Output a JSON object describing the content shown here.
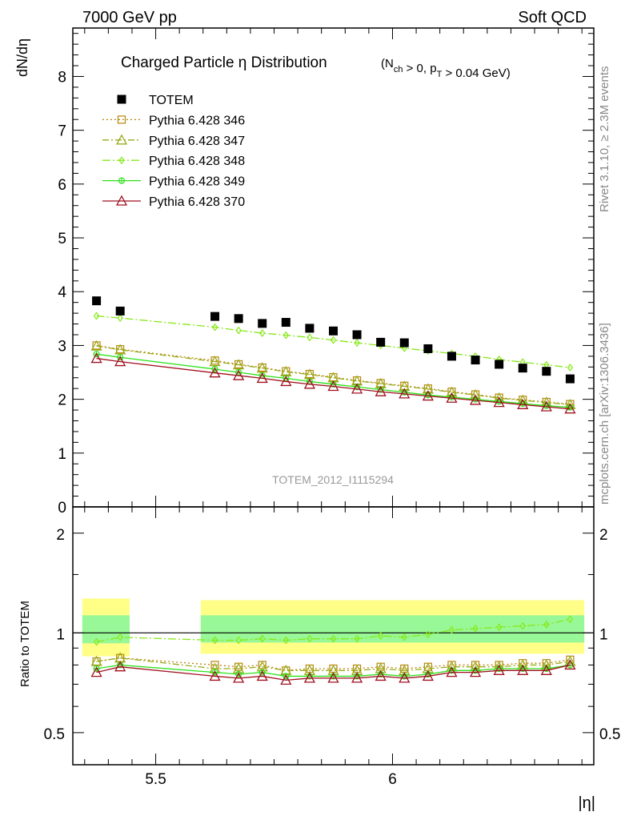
{
  "header": {
    "left": "7000 GeV pp",
    "right": "Soft QCD"
  },
  "side_labels": {
    "rivet": "Rivet 3.1.10, ≥ 2.3M events",
    "mcplots": "mcplots.cern.ch [arXiv:1306.3436]"
  },
  "watermark": "TOTEM_2012_I1115294",
  "colors": {
    "totem": "#000000",
    "p346": "#b8860b",
    "p347": "#9aab1a",
    "p348": "#88e81a",
    "p349": "#2ee01a",
    "p370": "#a01020",
    "band_outer": "#ffff88",
    "band_inner": "#98f898"
  },
  "chart_data": [
    {
      "type": "line",
      "title": "Charged Particle η Distribution",
      "title_cond": "(N_ch > 0, p_T > 0.04 GeV)",
      "ylabel": "dN/dη",
      "xlim": [
        5.325,
        6.425
      ],
      "ylim": [
        0,
        8.9
      ],
      "yticks": [
        0,
        1,
        2,
        3,
        4,
        5,
        6,
        7,
        8
      ],
      "x": [
        5.375,
        5.425,
        5.625,
        5.675,
        5.725,
        5.775,
        5.825,
        5.875,
        5.925,
        5.975,
        6.025,
        6.075,
        6.125,
        6.175,
        6.225,
        6.275,
        6.325,
        6.375
      ],
      "data": {
        "name": "TOTEM",
        "x": [
          5.375,
          5.425,
          5.625,
          5.675,
          5.725,
          5.775,
          5.825,
          5.875,
          5.925,
          5.975,
          6.025,
          6.075,
          6.125,
          6.175,
          6.225,
          6.275,
          6.325,
          6.375
        ],
        "values": [
          3.83,
          3.64,
          3.54,
          3.5,
          3.41,
          3.43,
          3.32,
          3.27,
          3.2,
          3.06,
          3.05,
          2.94,
          2.8,
          2.73,
          2.65,
          2.58,
          2.52,
          2.38
        ]
      },
      "series": [
        {
          "name": "Pythia 6.428 346",
          "marker": "square-open",
          "dash": "2,3",
          "values": [
            3.0,
            2.93,
            2.72,
            2.65,
            2.59,
            2.52,
            2.47,
            2.41,
            2.35,
            2.3,
            2.25,
            2.2,
            2.14,
            2.09,
            2.03,
            1.99,
            1.95,
            1.91
          ]
        },
        {
          "name": "Pythia 6.428 347",
          "marker": "triangle-open",
          "dash": "8,3,2,3",
          "values": [
            2.99,
            2.92,
            2.7,
            2.64,
            2.58,
            2.51,
            2.46,
            2.4,
            2.34,
            2.29,
            2.24,
            2.19,
            2.13,
            2.08,
            2.02,
            1.98,
            1.94,
            1.9
          ]
        },
        {
          "name": "Pythia 6.428 348",
          "marker": "diamond-open",
          "dash": "10,3,2,3",
          "values": [
            3.55,
            3.51,
            3.34,
            3.28,
            3.23,
            3.19,
            3.15,
            3.1,
            3.05,
            3.0,
            2.95,
            2.9,
            2.85,
            2.8,
            2.74,
            2.69,
            2.64,
            2.59
          ]
        },
        {
          "name": "Pythia 6.428 349",
          "marker": "circle-cross",
          "dash": "",
          "values": [
            2.84,
            2.78,
            2.56,
            2.5,
            2.44,
            2.39,
            2.33,
            2.28,
            2.23,
            2.18,
            2.13,
            2.08,
            2.04,
            2.0,
            1.96,
            1.92,
            1.88,
            1.85
          ]
        },
        {
          "name": "Pythia 6.428 370",
          "marker": "triangle-open",
          "dash": "",
          "values": [
            2.76,
            2.7,
            2.49,
            2.44,
            2.39,
            2.33,
            2.28,
            2.24,
            2.19,
            2.14,
            2.1,
            2.06,
            2.02,
            1.98,
            1.94,
            1.9,
            1.86,
            1.82
          ]
        }
      ]
    },
    {
      "type": "line",
      "ylabel": "Ratio to TOTEM",
      "xlabel": "|η|",
      "xlim": [
        5.325,
        6.425
      ],
      "ylim": [
        0.4,
        2.4
      ],
      "log_y": true,
      "yticks": [
        0.5,
        1,
        2
      ],
      "ytick_labels": [
        "0.5",
        "1",
        "2"
      ],
      "xticks": [
        5.5,
        6
      ],
      "xtick_labels": [
        "5.5",
        "6"
      ],
      "band_segments": [
        {
          "x": [
            5.345,
            5.445
          ],
          "outer": [
            0.85,
            1.27
          ],
          "inner": [
            0.93,
            1.13
          ]
        },
        {
          "x": [
            5.595,
            6.405
          ],
          "outer": [
            0.865,
            1.255
          ],
          "inner": [
            0.935,
            1.13
          ]
        }
      ],
      "series": [
        {
          "name": "Pythia 6.428 346",
          "values": [
            0.82,
            0.84,
            0.8,
            0.79,
            0.8,
            0.77,
            0.78,
            0.78,
            0.78,
            0.79,
            0.78,
            0.79,
            0.8,
            0.8,
            0.8,
            0.81,
            0.81,
            0.83
          ]
        },
        {
          "name": "Pythia 6.428 347",
          "values": [
            0.82,
            0.84,
            0.78,
            0.78,
            0.79,
            0.77,
            0.77,
            0.77,
            0.77,
            0.78,
            0.77,
            0.78,
            0.79,
            0.79,
            0.79,
            0.8,
            0.8,
            0.82
          ]
        },
        {
          "name": "Pythia 6.428 348",
          "values": [
            0.94,
            0.97,
            0.95,
            0.95,
            0.96,
            0.95,
            0.96,
            0.96,
            0.96,
            0.98,
            0.97,
            0.99,
            1.02,
            1.03,
            1.04,
            1.05,
            1.06,
            1.1
          ]
        },
        {
          "name": "Pythia 6.428 349",
          "values": [
            0.78,
            0.8,
            0.76,
            0.75,
            0.76,
            0.74,
            0.74,
            0.74,
            0.74,
            0.75,
            0.74,
            0.75,
            0.77,
            0.77,
            0.78,
            0.78,
            0.78,
            0.8
          ]
        },
        {
          "name": "Pythia 6.428 370",
          "values": [
            0.76,
            0.79,
            0.74,
            0.73,
            0.74,
            0.72,
            0.73,
            0.73,
            0.73,
            0.74,
            0.73,
            0.74,
            0.76,
            0.76,
            0.77,
            0.77,
            0.77,
            0.8
          ]
        }
      ]
    }
  ]
}
